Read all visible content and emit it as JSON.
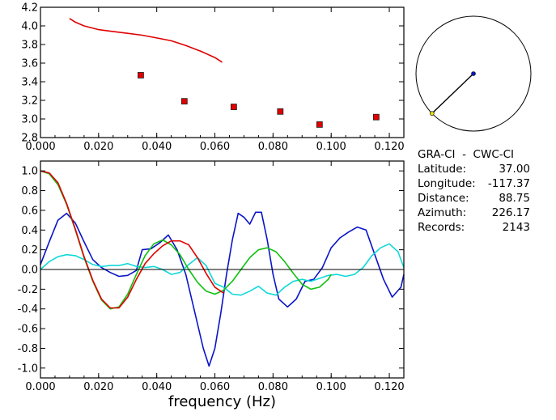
{
  "colors": {
    "red": "#e00000",
    "blue": "#0a14c8",
    "green": "#10c010",
    "cyan": "#10d8d8",
    "black": "#000000",
    "yellow": "#e8e000"
  },
  "info": {
    "title": "GRA-CI  -  CWC-CI",
    "rows": [
      {
        "label": "Latitude:",
        "value": "37.00"
      },
      {
        "label": "Longitude:",
        "value": "-117.37"
      },
      {
        "label": "Distance:",
        "value": "88.75"
      },
      {
        "label": "Azimuth:",
        "value": "226.17"
      },
      {
        "label": "Records:",
        "value": "2143"
      }
    ]
  },
  "azimuth_plot": {
    "azimuth_deg": 226.17,
    "station_fraction": 0.22
  },
  "chart_data": [
    {
      "type": "scatter",
      "xlim": [
        0.0,
        0.125
      ],
      "ylim": [
        2.8,
        4.2
      ],
      "xticks": [
        "0.000",
        "0.020",
        "0.040",
        "0.060",
        "0.080",
        "0.100",
        "0.120"
      ],
      "yticks": [
        "2.8",
        "3.0",
        "3.2",
        "3.4",
        "3.6",
        "3.8",
        "4.0",
        "4.2"
      ],
      "series": [
        {
          "kind": "line",
          "color": "red",
          "x": [
            0.01,
            0.012,
            0.015,
            0.02,
            0.025,
            0.03,
            0.035,
            0.04,
            0.045,
            0.05,
            0.055,
            0.06,
            0.0625
          ],
          "y": [
            4.08,
            4.04,
            4.0,
            3.96,
            3.94,
            3.92,
            3.9,
            3.87,
            3.84,
            3.79,
            3.73,
            3.66,
            3.61
          ]
        },
        {
          "kind": "points",
          "color": "red",
          "x": [
            0.0345,
            0.0495,
            0.0665,
            0.0825,
            0.096,
            0.1155
          ],
          "y": [
            3.47,
            3.19,
            3.13,
            3.08,
            2.94,
            3.02
          ]
        }
      ]
    },
    {
      "type": "line",
      "xlabel": "frequency (Hz)",
      "xlim": [
        0.0,
        0.125
      ],
      "ylim": [
        -1.1,
        1.1
      ],
      "xticks": [
        "0.000",
        "0.020",
        "0.040",
        "0.060",
        "0.080",
        "0.100",
        "0.120"
      ],
      "yticks": [
        "-1.0",
        "-0.8",
        "-0.6",
        "-0.4",
        "-0.2",
        "0.0",
        "0.2",
        "0.4",
        "0.6",
        "0.8",
        "1.0"
      ],
      "series": [
        {
          "color": "blue",
          "x": [
            0.0,
            0.003,
            0.006,
            0.009,
            0.012,
            0.015,
            0.018,
            0.021,
            0.024,
            0.027,
            0.03,
            0.033,
            0.035,
            0.038,
            0.041,
            0.044,
            0.047,
            0.05,
            0.052,
            0.054,
            0.056,
            0.058,
            0.06,
            0.062,
            0.064,
            0.066,
            0.068,
            0.07,
            0.072,
            0.074,
            0.076,
            0.078,
            0.08,
            0.082,
            0.085,
            0.088,
            0.091,
            0.094,
            0.097,
            0.1,
            0.103,
            0.106,
            0.109,
            0.112,
            0.115,
            0.118,
            0.121,
            0.124,
            0.125
          ],
          "y": [
            0.05,
            0.28,
            0.5,
            0.57,
            0.47,
            0.28,
            0.1,
            0.02,
            -0.03,
            -0.07,
            -0.06,
            -0.01,
            0.2,
            0.21,
            0.27,
            0.35,
            0.2,
            -0.05,
            -0.3,
            -0.55,
            -0.8,
            -0.98,
            -0.8,
            -0.45,
            -0.05,
            0.3,
            0.57,
            0.53,
            0.46,
            0.58,
            0.58,
            0.3,
            -0.05,
            -0.3,
            -0.38,
            -0.3,
            -0.12,
            -0.1,
            0.02,
            0.22,
            0.32,
            0.38,
            0.43,
            0.4,
            0.15,
            -0.1,
            -0.28,
            -0.18,
            -0.05
          ]
        },
        {
          "color": "cyan",
          "x": [
            0.0,
            0.003,
            0.006,
            0.009,
            0.012,
            0.015,
            0.018,
            0.021,
            0.024,
            0.027,
            0.03,
            0.033,
            0.036,
            0.039,
            0.042,
            0.045,
            0.048,
            0.051,
            0.054,
            0.057,
            0.06,
            0.063,
            0.066,
            0.069,
            0.072,
            0.075,
            0.078,
            0.081,
            0.084,
            0.087,
            0.09,
            0.093,
            0.096,
            0.099,
            0.102,
            0.105,
            0.108,
            0.111,
            0.114,
            0.117,
            0.12,
            0.123,
            0.125
          ],
          "y": [
            0.0,
            0.08,
            0.13,
            0.15,
            0.14,
            0.1,
            0.05,
            0.03,
            0.04,
            0.04,
            0.06,
            0.03,
            0.02,
            0.03,
            0.0,
            -0.05,
            -0.03,
            0.05,
            0.12,
            0.04,
            -0.14,
            -0.18,
            -0.25,
            -0.26,
            -0.22,
            -0.17,
            -0.24,
            -0.26,
            -0.18,
            -0.12,
            -0.1,
            -0.12,
            -0.09,
            -0.06,
            -0.05,
            -0.07,
            -0.05,
            0.02,
            0.14,
            0.22,
            0.26,
            0.18,
            0.02
          ]
        },
        {
          "color": "green",
          "x": [
            0.0,
            0.003,
            0.006,
            0.009,
            0.012,
            0.015,
            0.018,
            0.021,
            0.024,
            0.027,
            0.03,
            0.033,
            0.036,
            0.039,
            0.042,
            0.045,
            0.048,
            0.051,
            0.054,
            0.057,
            0.06,
            0.063,
            0.066,
            0.069,
            0.072,
            0.075,
            0.078,
            0.081,
            0.084,
            0.087,
            0.09,
            0.093,
            0.096,
            0.099,
            0.1
          ],
          "y": [
            1.0,
            0.97,
            0.86,
            0.66,
            0.4,
            0.12,
            -0.12,
            -0.31,
            -0.4,
            -0.38,
            -0.25,
            -0.05,
            0.14,
            0.26,
            0.3,
            0.25,
            0.15,
            0.0,
            -0.13,
            -0.22,
            -0.25,
            -0.21,
            -0.12,
            0.0,
            0.12,
            0.2,
            0.22,
            0.18,
            0.08,
            -0.04,
            -0.15,
            -0.2,
            -0.18,
            -0.1,
            -0.05
          ]
        },
        {
          "color": "red",
          "x": [
            0.0,
            0.003,
            0.006,
            0.009,
            0.012,
            0.015,
            0.018,
            0.021,
            0.024,
            0.027,
            0.03,
            0.033,
            0.036,
            0.039,
            0.042,
            0.045,
            0.048,
            0.051,
            0.054,
            0.057,
            0.06,
            0.063
          ],
          "y": [
            1.0,
            0.98,
            0.88,
            0.67,
            0.41,
            0.13,
            -0.11,
            -0.3,
            -0.39,
            -0.39,
            -0.28,
            -0.1,
            0.06,
            0.16,
            0.24,
            0.29,
            0.29,
            0.25,
            0.12,
            -0.04,
            -0.18,
            -0.24
          ]
        }
      ]
    }
  ]
}
